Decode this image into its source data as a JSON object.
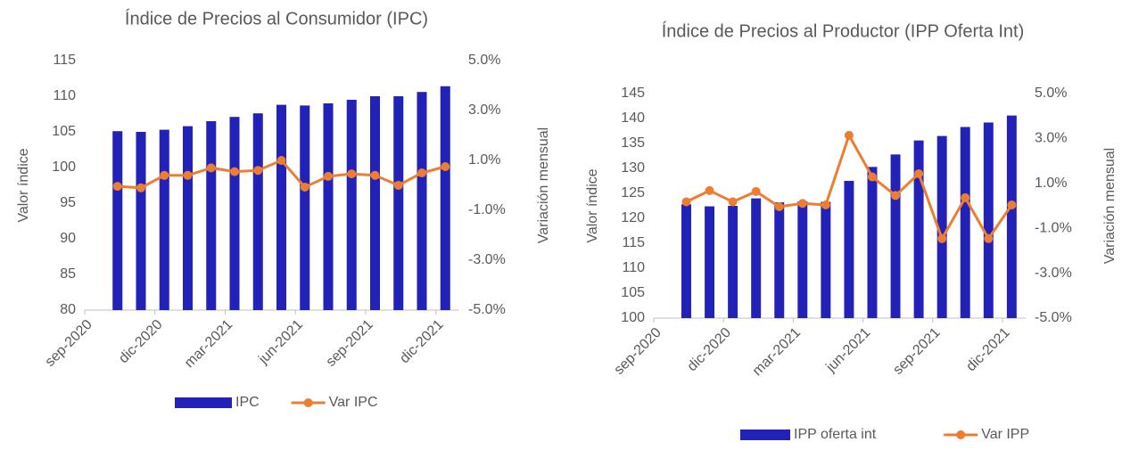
{
  "chart_data": [
    {
      "type": "bar_line",
      "title": "Índice de Precios al Consumidor (IPC)",
      "y_label": "Valor índice",
      "y2_label": "Variación mensual",
      "x": [
        "2020-10",
        "2020-11",
        "2020-12",
        "2021-01",
        "2021-02",
        "2021-03",
        "2021-04",
        "2021-05",
        "2021-06",
        "2021-07",
        "2021-08",
        "2021-09",
        "2021-10",
        "2021-11",
        "2021-12"
      ],
      "xlim": [
        "2020-09",
        "2022-01"
      ],
      "xticks": [
        {
          "value": "2020-09",
          "label": "sep-2020"
        },
        {
          "value": "2020-12",
          "label": "dic-2020"
        },
        {
          "value": "2021-03",
          "label": "mar-2021"
        },
        {
          "value": "2021-06",
          "label": "jun-2021"
        },
        {
          "value": "2021-09",
          "label": "sep-2021"
        },
        {
          "value": "2021-12",
          "label": "dic-2021"
        }
      ],
      "ylim": [
        80,
        115
      ],
      "yticks": [
        80,
        85,
        90,
        95,
        100,
        105,
        110,
        115
      ],
      "y2lim": [
        -5,
        5
      ],
      "y2ticks": [
        {
          "value": -5,
          "label": "-5.0%"
        },
        {
          "value": -3,
          "label": "-3.0%"
        },
        {
          "value": -1,
          "label": "-1.0%"
        },
        {
          "value": 1,
          "label": "1.0%"
        },
        {
          "value": 3,
          "label": "3.0%"
        },
        {
          "value": 5,
          "label": "5.0%"
        }
      ],
      "series": [
        {
          "name": "IPC",
          "kind": "bar",
          "color": "#2222b8",
          "values": [
            105.1,
            105.0,
            105.3,
            105.8,
            106.5,
            107.1,
            107.6,
            108.8,
            108.7,
            109.0,
            109.5,
            110.0,
            110.0,
            110.6,
            111.4
          ]
        },
        {
          "name": "Var IPC",
          "kind": "line",
          "axis": "y2",
          "color": "#ed7d31",
          "values": [
            -0.04,
            -0.1,
            0.4,
            0.4,
            0.7,
            0.55,
            0.6,
            1.0,
            -0.07,
            0.36,
            0.46,
            0.4,
            0.0,
            0.5,
            0.75
          ]
        }
      ]
    },
    {
      "type": "bar_line",
      "title": "Índice de Precios al Productor (IPP Oferta Int)",
      "y_label": "Valor índice",
      "y2_label": "Variación mensual",
      "x": [
        "2020-10",
        "2020-11",
        "2020-12",
        "2021-01",
        "2021-02",
        "2021-03",
        "2021-04",
        "2021-05",
        "2021-06",
        "2021-07",
        "2021-08",
        "2021-09",
        "2021-10",
        "2021-11",
        "2021-12"
      ],
      "xlim": [
        "2020-09",
        "2022-01"
      ],
      "xticks": [
        {
          "value": "2020-09",
          "label": "sep-2020"
        },
        {
          "value": "2020-12",
          "label": "dic-2020"
        },
        {
          "value": "2021-03",
          "label": "mar-2021"
        },
        {
          "value": "2021-06",
          "label": "jun-2021"
        },
        {
          "value": "2021-09",
          "label": "sep-2021"
        },
        {
          "value": "2021-12",
          "label": "dic-2021"
        }
      ],
      "ylim": [
        100,
        145
      ],
      "yticks": [
        100,
        105,
        110,
        115,
        120,
        125,
        130,
        135,
        140,
        145
      ],
      "y2lim": [
        -5,
        5
      ],
      "y2ticks": [
        {
          "value": -5,
          "label": "-5.0%"
        },
        {
          "value": -3,
          "label": "-3.0%"
        },
        {
          "value": -1,
          "label": "-1.0%"
        },
        {
          "value": 1,
          "label": "1.0%"
        },
        {
          "value": 3,
          "label": "3.0%"
        },
        {
          "value": 5,
          "label": "5.0%"
        }
      ],
      "series": [
        {
          "name": "IPP oferta int",
          "kind": "bar",
          "color": "#2222b8",
          "values": [
            122.8,
            122.4,
            122.5,
            124.0,
            123.2,
            123.4,
            123.3,
            127.5,
            130.3,
            132.8,
            135.6,
            136.5,
            138.3,
            139.2,
            140.6
          ]
        },
        {
          "name": "Var IPP",
          "kind": "line",
          "axis": "y2",
          "color": "#ed7d31",
          "values": [
            0.18,
            0.68,
            0.18,
            0.64,
            -0.04,
            0.11,
            0.04,
            3.14,
            1.29,
            0.46,
            1.43,
            -1.46,
            0.36,
            -1.46,
            0.04
          ]
        }
      ]
    }
  ]
}
